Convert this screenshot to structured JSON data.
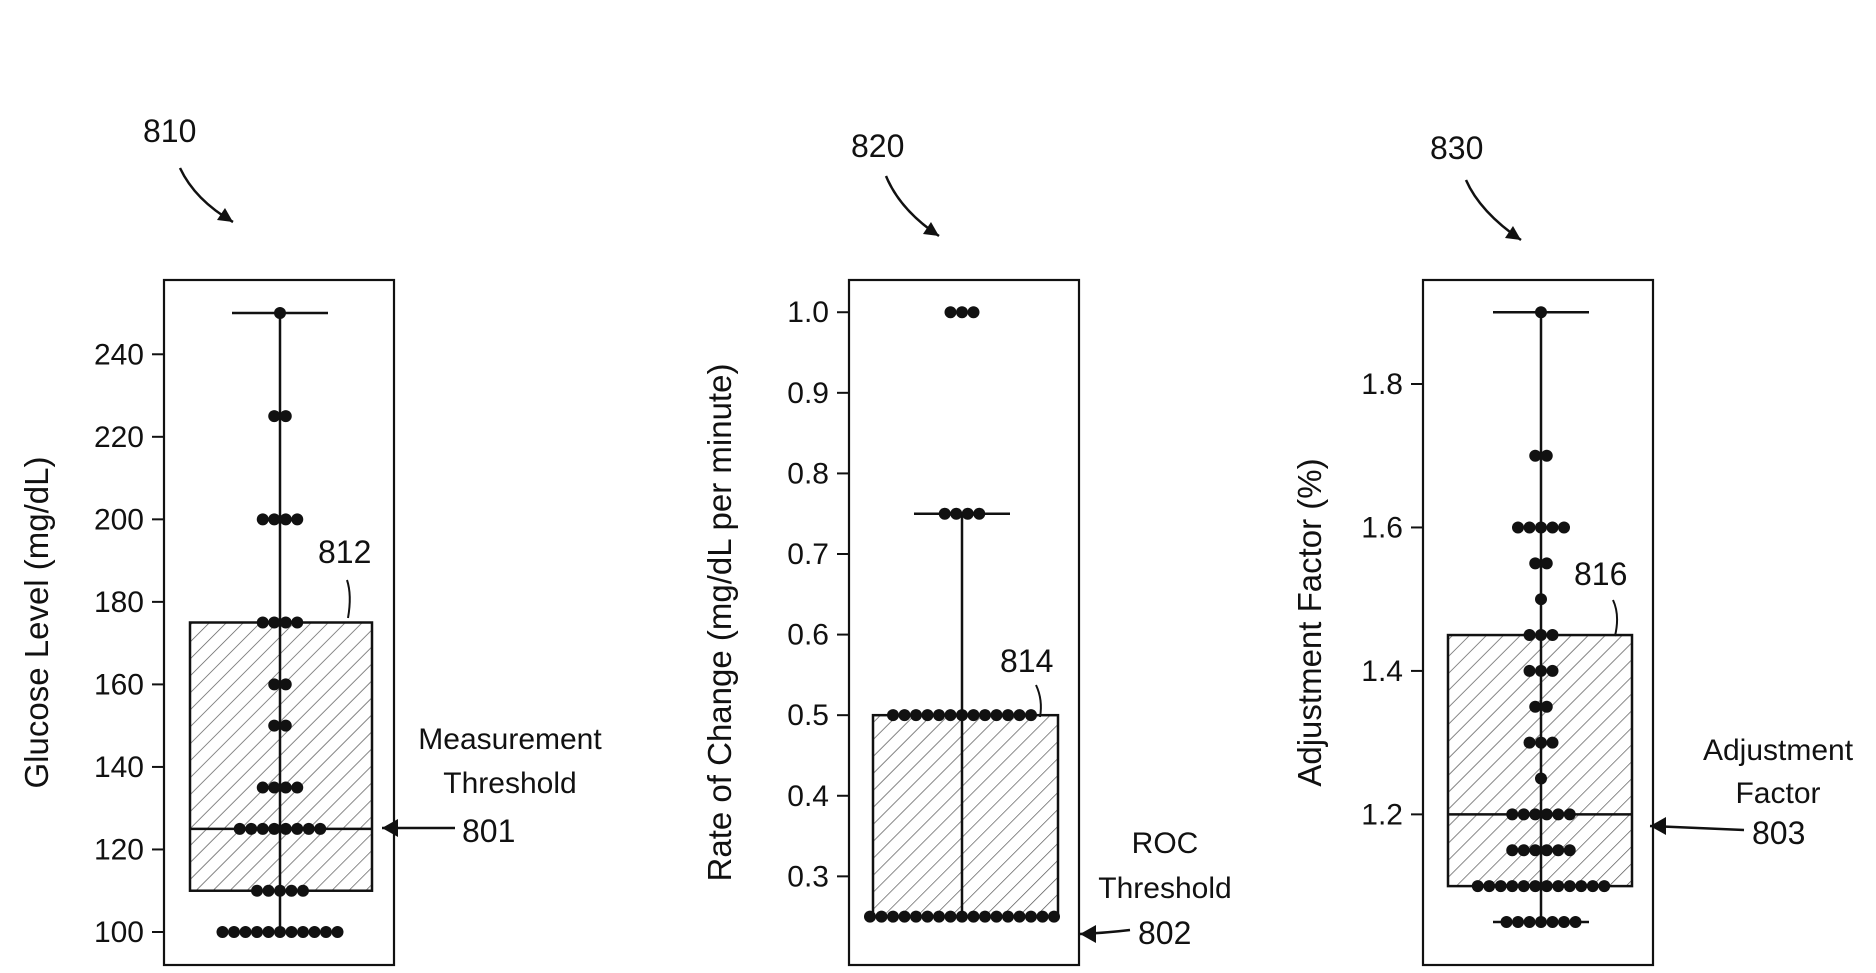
{
  "chart_data": [
    {
      "type": "box",
      "ref": "810",
      "ylabel": "Glucose Level (mg/dL)",
      "yticks": [
        100,
        120,
        140,
        160,
        180,
        200,
        220,
        240
      ],
      "ylim": [
        92,
        258
      ],
      "whisker_low": 100,
      "whisker_high": 250,
      "q1": 110,
      "median": 125,
      "q3": 175,
      "box_ref": "812",
      "threshold_label": [
        "Measurement",
        "Threshold"
      ],
      "threshold_ref": "801",
      "threshold_value": 125,
      "points": [
        {
          "y": 250,
          "count": 1
        },
        {
          "y": 225,
          "count": 2
        },
        {
          "y": 200,
          "count": 4
        },
        {
          "y": 175,
          "count": 4
        },
        {
          "y": 160,
          "count": 2
        },
        {
          "y": 150,
          "count": 2
        },
        {
          "y": 135,
          "count": 4
        },
        {
          "y": 125,
          "count": 8
        },
        {
          "y": 110,
          "count": 5
        },
        {
          "y": 100,
          "count": 11
        }
      ]
    },
    {
      "type": "box",
      "ref": "820",
      "ylabel": "Rate of Change (mg/dL per minute)",
      "yticks": [
        0.3,
        0.4,
        0.5,
        0.6,
        0.7,
        0.8,
        0.9,
        1.0
      ],
      "ytick_labels": [
        "0.3",
        "0.4",
        "0.5",
        "0.6",
        "0.7",
        "0.8",
        "0.9",
        "1.0"
      ],
      "ylim": [
        0.19,
        1.04
      ],
      "whisker_low": 0.25,
      "whisker_high": 0.75,
      "q1": 0.25,
      "median": 0.25,
      "q3": 0.5,
      "box_ref": "814",
      "threshold_label": [
        "ROC",
        "Threshold"
      ],
      "threshold_ref": "802",
      "threshold_value": 0.25,
      "points": [
        {
          "y": 1.0,
          "count": 3
        },
        {
          "y": 0.75,
          "count": 4
        },
        {
          "y": 0.5,
          "count": 13
        },
        {
          "y": 0.25,
          "count": 17
        }
      ]
    },
    {
      "type": "box",
      "ref": "830",
      "ylabel": "Adjustment Factor (%)",
      "yticks": [
        1.2,
        1.4,
        1.6,
        1.8
      ],
      "ytick_labels": [
        "1.2",
        "1.4",
        "1.6",
        "1.8"
      ],
      "ylim": [
        0.99,
        1.945
      ],
      "whisker_low": 1.05,
      "whisker_high": 1.9,
      "q1": 1.1,
      "median": 1.2,
      "q3": 1.45,
      "box_ref": "816",
      "threshold_label": [
        "Adjustment",
        "Factor"
      ],
      "threshold_ref": "803",
      "threshold_value": 1.2,
      "points": [
        {
          "y": 1.9,
          "count": 1
        },
        {
          "y": 1.7,
          "count": 2
        },
        {
          "y": 1.6,
          "count": 5
        },
        {
          "y": 1.55,
          "count": 2
        },
        {
          "y": 1.5,
          "count": 1
        },
        {
          "y": 1.45,
          "count": 3
        },
        {
          "y": 1.4,
          "count": 3
        },
        {
          "y": 1.35,
          "count": 2
        },
        {
          "y": 1.3,
          "count": 3
        },
        {
          "y": 1.25,
          "count": 1
        },
        {
          "y": 1.2,
          "count": 6
        },
        {
          "y": 1.15,
          "count": 6
        },
        {
          "y": 1.1,
          "count": 12
        },
        {
          "y": 1.05,
          "count": 7
        }
      ]
    }
  ]
}
